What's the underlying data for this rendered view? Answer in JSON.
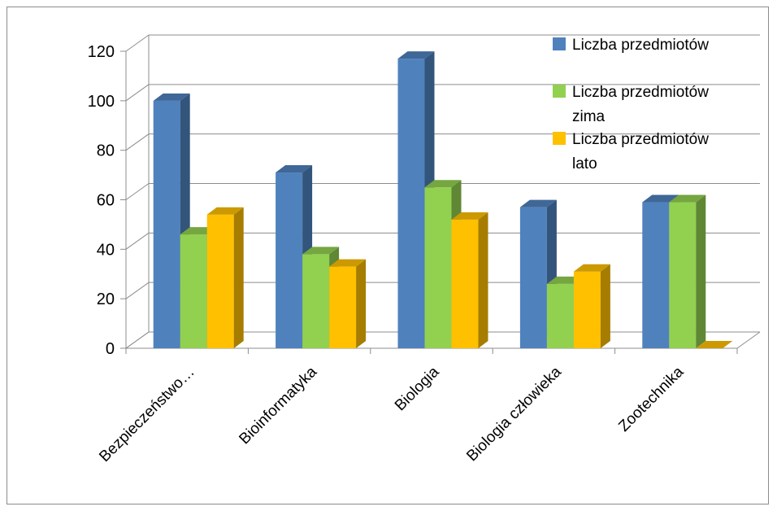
{
  "chart_data": {
    "type": "bar",
    "title": "",
    "xlabel": "",
    "ylabel": "",
    "categories": [
      "Bezpieczeństwo…",
      "Bioinformatyka",
      "Biologia",
      "Biologia człowieka",
      "Zootechnika"
    ],
    "ylim": [
      0,
      120
    ],
    "yticks": [
      0,
      20,
      40,
      60,
      80,
      100,
      120
    ],
    "grid": true,
    "legend_position": "top-right",
    "series": [
      {
        "name": "Liczba przedmiotów",
        "color": "#4F81BD",
        "values": [
          100,
          71,
          117,
          57,
          59
        ]
      },
      {
        "name": "Liczba przedmiotów zima",
        "color": "#92D050",
        "values": [
          46,
          38,
          65,
          26,
          59
        ]
      },
      {
        "name": "Liczba przedmiotów lato",
        "color": "#FFC000",
        "values": [
          54,
          33,
          52,
          31,
          0
        ]
      }
    ]
  }
}
